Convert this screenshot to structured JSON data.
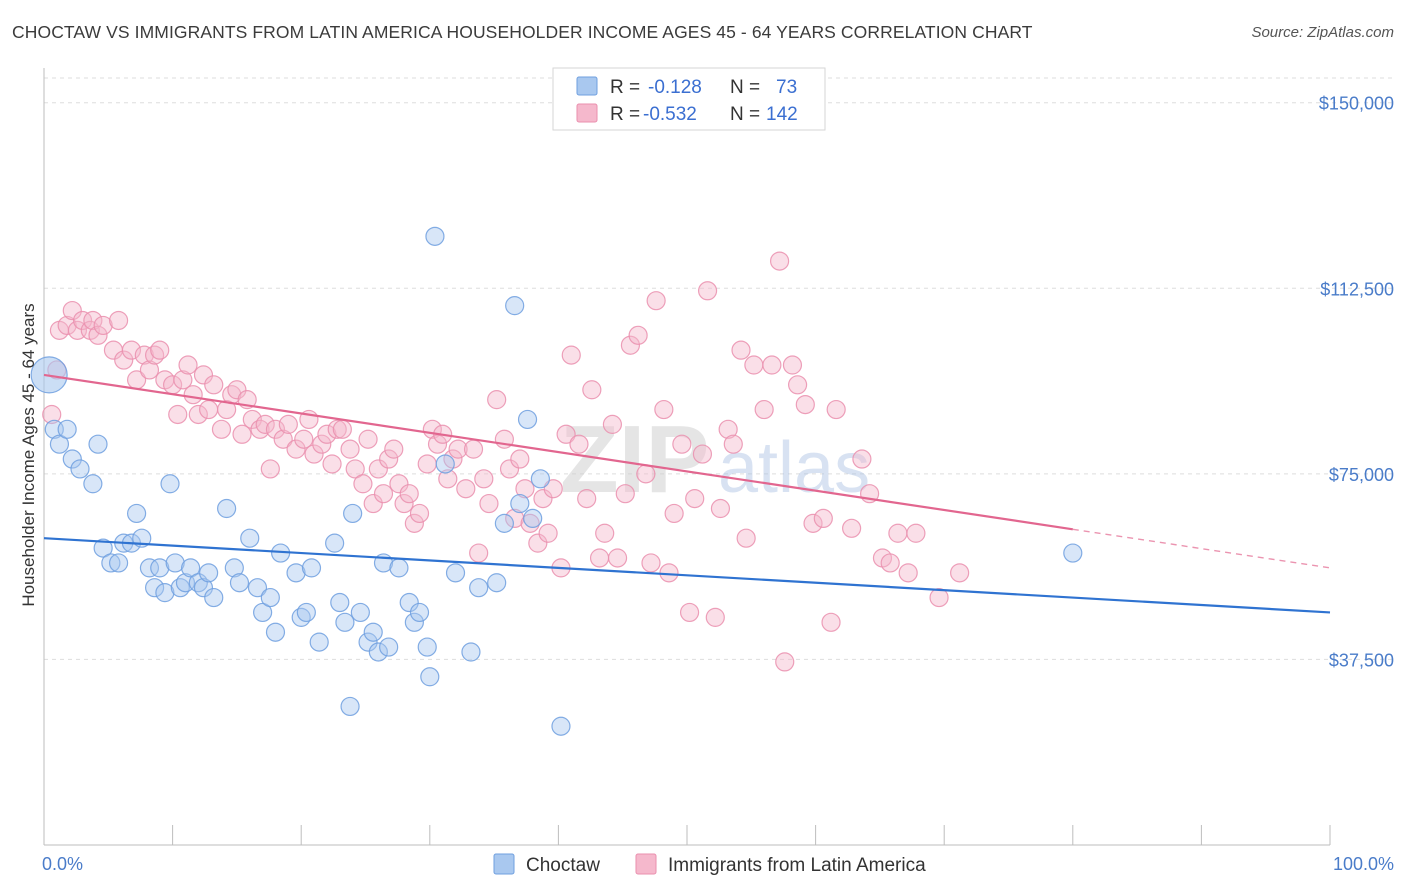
{
  "title": "CHOCTAW VS IMMIGRANTS FROM LATIN AMERICA HOUSEHOLDER INCOME AGES 45 - 64 YEARS CORRELATION CHART",
  "source": "Source: ZipAtlas.com",
  "watermark": {
    "zip": "ZIP",
    "atlas": "atlas"
  },
  "colors": {
    "blue_fill": "#a9c8ef",
    "blue_stroke": "#6f9fdf",
    "blue_line": "#2f73d1",
    "pink_fill": "#f5b8cc",
    "pink_stroke": "#ea8fae",
    "pink_line": "#e2668f",
    "grid": "#dddddd",
    "axis_text": "#4a7cc9"
  },
  "legend_stats": [
    {
      "r_label": "R =",
      "r_value": "-0.128",
      "n_label": "N =",
      "n_value": "73"
    },
    {
      "r_label": "R =",
      "r_value": "-0.532",
      "n_label": "N =",
      "n_value": "142"
    }
  ],
  "chart_data": {
    "type": "scatter",
    "title": "CHOCTAW VS IMMIGRANTS FROM LATIN AMERICA HOUSEHOLDER INCOME AGES 45 - 64 YEARS CORRELATION CHART",
    "xlabel": "",
    "ylabel": "Householder Income Ages 45 - 64 years",
    "xlim": [
      0,
      100
    ],
    "ylim": [
      0,
      155000
    ],
    "x_tick_labels": [
      "0.0%",
      "100.0%"
    ],
    "y_ticks": [
      37500,
      75000,
      112500,
      150000
    ],
    "y_tick_labels": [
      "$37,500",
      "$75,000",
      "$112,500",
      "$150,000"
    ],
    "legend": [
      "Choctaw",
      "Immigrants from Latin America"
    ],
    "legend_position": "bottom-center",
    "series": [
      {
        "name": "Choctaw",
        "trend": {
          "x": [
            0,
            100
          ],
          "y": [
            62000,
            47000
          ],
          "dashed_from": null
        },
        "points": [
          [
            0.4,
            95000,
            "big"
          ],
          [
            0.8,
            84000
          ],
          [
            1.2,
            81000
          ],
          [
            1.8,
            84000
          ],
          [
            2.2,
            78000
          ],
          [
            2.8,
            76000
          ],
          [
            3.8,
            73000
          ],
          [
            4.2,
            81000
          ],
          [
            4.6,
            60000
          ],
          [
            5.2,
            57000
          ],
          [
            5.8,
            57000
          ],
          [
            6.2,
            61000
          ],
          [
            6.8,
            61000
          ],
          [
            7.2,
            67000
          ],
          [
            7.6,
            62000
          ],
          [
            8.2,
            56000
          ],
          [
            8.6,
            52000
          ],
          [
            9.0,
            56000
          ],
          [
            9.4,
            51000
          ],
          [
            9.8,
            73000
          ],
          [
            10.2,
            57000
          ],
          [
            10.6,
            52000
          ],
          [
            11.0,
            53000
          ],
          [
            11.4,
            56000
          ],
          [
            12.0,
            53000
          ],
          [
            12.4,
            52000
          ],
          [
            12.8,
            55000
          ],
          [
            13.2,
            50000
          ],
          [
            14.2,
            68000
          ],
          [
            14.8,
            56000
          ],
          [
            15.2,
            53000
          ],
          [
            16.0,
            62000
          ],
          [
            16.6,
            52000
          ],
          [
            17.0,
            47000
          ],
          [
            17.6,
            50000
          ],
          [
            18.0,
            43000
          ],
          [
            18.4,
            59000
          ],
          [
            19.6,
            55000
          ],
          [
            20.0,
            46000
          ],
          [
            20.4,
            47000
          ],
          [
            20.8,
            56000
          ],
          [
            21.4,
            41000
          ],
          [
            22.6,
            61000
          ],
          [
            23.0,
            49000
          ],
          [
            23.4,
            45000
          ],
          [
            24.0,
            67000
          ],
          [
            24.6,
            47000
          ],
          [
            25.2,
            41000
          ],
          [
            25.6,
            43000
          ],
          [
            26.0,
            39000
          ],
          [
            26.4,
            57000
          ],
          [
            26.8,
            40000
          ],
          [
            27.6,
            56000
          ],
          [
            28.4,
            49000
          ],
          [
            28.8,
            45000
          ],
          [
            29.2,
            47000
          ],
          [
            29.8,
            40000
          ],
          [
            30.0,
            34000
          ],
          [
            30.4,
            123000
          ],
          [
            31.2,
            77000
          ],
          [
            32.0,
            55000
          ],
          [
            33.2,
            39000
          ],
          [
            33.8,
            52000
          ],
          [
            35.2,
            53000
          ],
          [
            35.8,
            65000
          ],
          [
            36.6,
            109000
          ],
          [
            37.0,
            69000
          ],
          [
            38.0,
            66000
          ],
          [
            38.6,
            74000
          ],
          [
            40.2,
            24000
          ],
          [
            37.6,
            86000
          ],
          [
            23.8,
            28000
          ],
          [
            80.0,
            59000
          ]
        ]
      },
      {
        "name": "Immigrants from Latin America",
        "trend": {
          "x": [
            0,
            100
          ],
          "y": [
            95000,
            56000
          ],
          "dashed_from": 80
        },
        "points": [
          [
            0.6,
            87000
          ],
          [
            1.0,
            96000
          ],
          [
            1.2,
            104000
          ],
          [
            1.8,
            105000
          ],
          [
            2.2,
            108000
          ],
          [
            2.6,
            104000
          ],
          [
            3.0,
            106000
          ],
          [
            3.6,
            104000
          ],
          [
            3.8,
            106000
          ],
          [
            4.2,
            103000
          ],
          [
            4.6,
            105000
          ],
          [
            5.4,
            100000
          ],
          [
            5.8,
            106000
          ],
          [
            6.2,
            98000
          ],
          [
            6.8,
            100000
          ],
          [
            7.2,
            94000
          ],
          [
            7.8,
            99000
          ],
          [
            8.2,
            96000
          ],
          [
            8.6,
            99000
          ],
          [
            9.0,
            100000
          ],
          [
            9.4,
            94000
          ],
          [
            10.0,
            93000
          ],
          [
            10.4,
            87000
          ],
          [
            10.8,
            94000
          ],
          [
            11.2,
            97000
          ],
          [
            11.6,
            91000
          ],
          [
            12.0,
            87000
          ],
          [
            12.4,
            95000
          ],
          [
            12.8,
            88000
          ],
          [
            13.2,
            93000
          ],
          [
            13.8,
            84000
          ],
          [
            14.2,
            88000
          ],
          [
            14.6,
            91000
          ],
          [
            15.0,
            92000
          ],
          [
            15.4,
            83000
          ],
          [
            15.8,
            90000
          ],
          [
            16.2,
            86000
          ],
          [
            16.8,
            84000
          ],
          [
            17.2,
            85000
          ],
          [
            17.6,
            76000
          ],
          [
            18.0,
            84000
          ],
          [
            18.6,
            82000
          ],
          [
            19.0,
            85000
          ],
          [
            19.6,
            80000
          ],
          [
            20.2,
            82000
          ],
          [
            20.6,
            86000
          ],
          [
            21.0,
            79000
          ],
          [
            21.6,
            81000
          ],
          [
            22.0,
            83000
          ],
          [
            22.4,
            77000
          ],
          [
            22.8,
            84000
          ],
          [
            23.2,
            84000
          ],
          [
            23.8,
            80000
          ],
          [
            24.2,
            76000
          ],
          [
            24.8,
            73000
          ],
          [
            25.2,
            82000
          ],
          [
            25.6,
            69000
          ],
          [
            26.0,
            76000
          ],
          [
            26.4,
            71000
          ],
          [
            26.8,
            78000
          ],
          [
            27.2,
            80000
          ],
          [
            27.6,
            73000
          ],
          [
            28.0,
            69000
          ],
          [
            28.4,
            71000
          ],
          [
            28.8,
            65000
          ],
          [
            29.2,
            67000
          ],
          [
            29.8,
            77000
          ],
          [
            30.2,
            84000
          ],
          [
            30.6,
            81000
          ],
          [
            31.0,
            83000
          ],
          [
            31.4,
            74000
          ],
          [
            31.8,
            78000
          ],
          [
            32.2,
            80000
          ],
          [
            32.8,
            72000
          ],
          [
            33.4,
            80000
          ],
          [
            33.8,
            59000
          ],
          [
            34.2,
            74000
          ],
          [
            34.6,
            69000
          ],
          [
            35.2,
            90000
          ],
          [
            35.8,
            82000
          ],
          [
            36.2,
            76000
          ],
          [
            36.6,
            66000
          ],
          [
            37.0,
            78000
          ],
          [
            37.4,
            72000
          ],
          [
            37.8,
            65000
          ],
          [
            38.4,
            61000
          ],
          [
            38.8,
            70000
          ],
          [
            39.2,
            63000
          ],
          [
            39.6,
            72000
          ],
          [
            40.2,
            56000
          ],
          [
            40.6,
            83000
          ],
          [
            41.0,
            99000
          ],
          [
            41.6,
            81000
          ],
          [
            42.2,
            70000
          ],
          [
            42.6,
            92000
          ],
          [
            43.2,
            58000
          ],
          [
            43.6,
            63000
          ],
          [
            44.2,
            85000
          ],
          [
            44.6,
            58000
          ],
          [
            45.2,
            71000
          ],
          [
            45.6,
            101000
          ],
          [
            46.2,
            103000
          ],
          [
            46.8,
            75000
          ],
          [
            47.2,
            57000
          ],
          [
            47.6,
            110000
          ],
          [
            48.2,
            88000
          ],
          [
            48.6,
            55000
          ],
          [
            49.0,
            67000
          ],
          [
            49.6,
            81000
          ],
          [
            50.2,
            47000
          ],
          [
            50.6,
            70000
          ],
          [
            51.2,
            79000
          ],
          [
            51.6,
            112000
          ],
          [
            52.2,
            46000
          ],
          [
            52.6,
            68000
          ],
          [
            53.2,
            84000
          ],
          [
            53.6,
            81000
          ],
          [
            54.2,
            100000
          ],
          [
            54.6,
            62000
          ],
          [
            55.2,
            97000
          ],
          [
            56.0,
            88000
          ],
          [
            56.6,
            97000
          ],
          [
            57.2,
            118000
          ],
          [
            57.6,
            37000
          ],
          [
            58.2,
            97000
          ],
          [
            58.6,
            93000
          ],
          [
            59.2,
            89000
          ],
          [
            59.8,
            65000
          ],
          [
            60.6,
            66000
          ],
          [
            61.2,
            45000
          ],
          [
            61.6,
            88000
          ],
          [
            62.8,
            64000
          ],
          [
            63.6,
            78000
          ],
          [
            64.2,
            71000
          ],
          [
            65.2,
            58000
          ],
          [
            65.8,
            57000
          ],
          [
            66.4,
            63000
          ],
          [
            67.2,
            55000
          ],
          [
            67.8,
            63000
          ],
          [
            69.6,
            50000
          ],
          [
            71.2,
            55000
          ]
        ]
      }
    ]
  }
}
